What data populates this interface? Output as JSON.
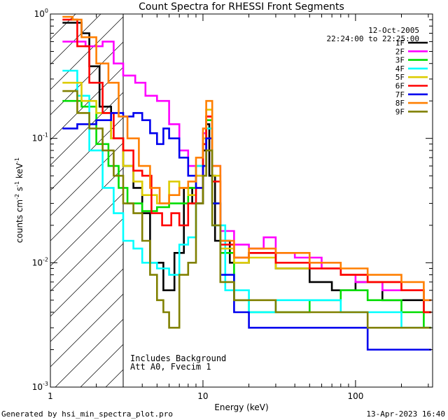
{
  "chart_data": {
    "type": "line",
    "title": "Count Spectra for RHESSI Front Segments",
    "xlabel": "Energy (keV)",
    "ylabel_parts": [
      "counts cm",
      "-2",
      " s",
      "-1",
      " keV",
      "-1"
    ],
    "x_scale": "log",
    "y_scale": "log",
    "xlim": [
      1.0,
      320
    ],
    "ylim": [
      0.001,
      1.0
    ],
    "x_ticks": [
      {
        "value": 1,
        "label": "1"
      },
      {
        "value": 10,
        "label": "10"
      },
      {
        "value": 100,
        "label": "100"
      }
    ],
    "y_ticks": [
      {
        "value": 1,
        "base": "10",
        "exp": "0"
      },
      {
        "value": 0.1,
        "base": "10",
        "exp": "-1"
      },
      {
        "value": 0.01,
        "base": "10",
        "exp": "-2"
      },
      {
        "value": 0.001,
        "base": "10",
        "exp": "-3"
      }
    ],
    "date": "12-Oct-2005",
    "time_range": "22:24:00 to 22:25:00",
    "shaded_region_max_keV": 3.0,
    "annotation_lines": [
      "Includes Background",
      "Att A0, Fvecim 1"
    ],
    "legend_position": "top-right",
    "series": [
      {
        "name": "1F",
        "color": "#000000",
        "points": [
          [
            1.2,
            0.85
          ],
          [
            1.6,
            0.7
          ],
          [
            1.8,
            0.38
          ],
          [
            2.1,
            0.18
          ],
          [
            2.5,
            0.1
          ],
          [
            3.0,
            0.06
          ],
          [
            3.5,
            0.04
          ],
          [
            4.0,
            0.025
          ],
          [
            4.5,
            0.01
          ],
          [
            5.5,
            0.006
          ],
          [
            6.5,
            0.012
          ],
          [
            7.5,
            0.04
          ],
          [
            8.5,
            0.03
          ],
          [
            10.0,
            0.08
          ],
          [
            10.5,
            0.13
          ],
          [
            11.0,
            0.05
          ],
          [
            12.0,
            0.015
          ],
          [
            15,
            0.01
          ],
          [
            20,
            0.012
          ],
          [
            30,
            0.009
          ],
          [
            50,
            0.007
          ],
          [
            70,
            0.006
          ],
          [
            100,
            0.007
          ],
          [
            150,
            0.005
          ],
          [
            200,
            0.005
          ],
          [
            280,
            0.004
          ]
        ]
      },
      {
        "name": "2F",
        "color": "#ff00ff",
        "points": [
          [
            1.2,
            0.6
          ],
          [
            1.7,
            0.55
          ],
          [
            2.2,
            0.6
          ],
          [
            2.6,
            0.4
          ],
          [
            3.0,
            0.32
          ],
          [
            3.6,
            0.28
          ],
          [
            4.2,
            0.22
          ],
          [
            5.0,
            0.2
          ],
          [
            6.0,
            0.13
          ],
          [
            7.0,
            0.08
          ],
          [
            8.0,
            0.06
          ],
          [
            9.0,
            0.05
          ],
          [
            10.0,
            0.11
          ],
          [
            10.5,
            0.15
          ],
          [
            11.5,
            0.06
          ],
          [
            13,
            0.018
          ],
          [
            16,
            0.014
          ],
          [
            20,
            0.013
          ],
          [
            25,
            0.016
          ],
          [
            30,
            0.012
          ],
          [
            40,
            0.011
          ],
          [
            60,
            0.009
          ],
          [
            80,
            0.008
          ],
          [
            100,
            0.007
          ],
          [
            150,
            0.006
          ],
          [
            200,
            0.006
          ],
          [
            280,
            0.005
          ]
        ]
      },
      {
        "name": "3F",
        "color": "#00dd00",
        "points": [
          [
            1.2,
            0.2
          ],
          [
            1.6,
            0.18
          ],
          [
            2.0,
            0.09
          ],
          [
            2.4,
            0.06
          ],
          [
            2.8,
            0.04
          ],
          [
            3.2,
            0.03
          ],
          [
            4.0,
            0.026
          ],
          [
            5.0,
            0.028
          ],
          [
            6.0,
            0.03
          ],
          [
            7.0,
            0.03
          ],
          [
            8.0,
            0.04
          ],
          [
            9.0,
            0.06
          ],
          [
            10.0,
            0.09
          ],
          [
            10.5,
            0.14
          ],
          [
            11.5,
            0.03
          ],
          [
            13,
            0.012
          ],
          [
            16,
            0.005
          ],
          [
            20,
            0.004
          ],
          [
            30,
            0.004
          ],
          [
            50,
            0.005
          ],
          [
            80,
            0.006
          ],
          [
            120,
            0.005
          ],
          [
            200,
            0.004
          ],
          [
            280,
            0.003
          ]
        ]
      },
      {
        "name": "4F",
        "color": "#00ffff",
        "points": [
          [
            1.2,
            0.35
          ],
          [
            1.5,
            0.22
          ],
          [
            1.8,
            0.08
          ],
          [
            2.2,
            0.04
          ],
          [
            2.6,
            0.025
          ],
          [
            3.0,
            0.015
          ],
          [
            3.5,
            0.013
          ],
          [
            4.0,
            0.01
          ],
          [
            5.0,
            0.009
          ],
          [
            6.0,
            0.008
          ],
          [
            7.0,
            0.014
          ],
          [
            8.0,
            0.016
          ],
          [
            9.0,
            0.06
          ],
          [
            10.0,
            0.09
          ],
          [
            10.5,
            0.12
          ],
          [
            11.5,
            0.02
          ],
          [
            14,
            0.006
          ],
          [
            20,
            0.004
          ],
          [
            30,
            0.005
          ],
          [
            50,
            0.005
          ],
          [
            80,
            0.004
          ],
          [
            120,
            0.004
          ],
          [
            200,
            0.003
          ],
          [
            280,
            0.003
          ]
        ]
      },
      {
        "name": "5F",
        "color": "#ddcc00",
        "points": [
          [
            1.2,
            0.28
          ],
          [
            1.6,
            0.2
          ],
          [
            2.0,
            0.16
          ],
          [
            2.5,
            0.1
          ],
          [
            3.0,
            0.06
          ],
          [
            3.5,
            0.045
          ],
          [
            4.0,
            0.035
          ],
          [
            5.0,
            0.03
          ],
          [
            6.0,
            0.045
          ],
          [
            7.0,
            0.04
          ],
          [
            8.0,
            0.035
          ],
          [
            9.0,
            0.05
          ],
          [
            10.0,
            0.1
          ],
          [
            10.5,
            0.17
          ],
          [
            11.5,
            0.05
          ],
          [
            13,
            0.013
          ],
          [
            16,
            0.01
          ],
          [
            20,
            0.011
          ],
          [
            30,
            0.009
          ],
          [
            50,
            0.009
          ],
          [
            80,
            0.008
          ],
          [
            120,
            0.007
          ],
          [
            200,
            0.006
          ],
          [
            280,
            0.004
          ]
        ]
      },
      {
        "name": "6F",
        "color": "#ff0000",
        "points": [
          [
            1.2,
            0.9
          ],
          [
            1.5,
            0.55
          ],
          [
            1.8,
            0.28
          ],
          [
            2.2,
            0.16
          ],
          [
            2.6,
            0.1
          ],
          [
            3.0,
            0.08
          ],
          [
            3.5,
            0.055
          ],
          [
            4.0,
            0.05
          ],
          [
            4.6,
            0.025
          ],
          [
            5.4,
            0.02
          ],
          [
            6.2,
            0.025
          ],
          [
            7.0,
            0.02
          ],
          [
            8.0,
            0.03
          ],
          [
            9.0,
            0.04
          ],
          [
            10.0,
            0.09
          ],
          [
            10.5,
            0.15
          ],
          [
            11.5,
            0.045
          ],
          [
            13,
            0.014
          ],
          [
            16,
            0.011
          ],
          [
            20,
            0.012
          ],
          [
            30,
            0.01
          ],
          [
            50,
            0.009
          ],
          [
            80,
            0.008
          ],
          [
            120,
            0.007
          ],
          [
            200,
            0.006
          ],
          [
            280,
            0.004
          ]
        ]
      },
      {
        "name": "7F",
        "color": "#0000ee",
        "points": [
          [
            1.2,
            0.12
          ],
          [
            1.5,
            0.13
          ],
          [
            2.0,
            0.14
          ],
          [
            2.5,
            0.16
          ],
          [
            3.0,
            0.15
          ],
          [
            3.5,
            0.16
          ],
          [
            4.0,
            0.14
          ],
          [
            4.5,
            0.11
          ],
          [
            5.0,
            0.09
          ],
          [
            5.5,
            0.12
          ],
          [
            6.0,
            0.1
          ],
          [
            7.0,
            0.07
          ],
          [
            8.0,
            0.05
          ],
          [
            9.0,
            0.04
          ],
          [
            10.0,
            0.06
          ],
          [
            10.5,
            0.1
          ],
          [
            11.5,
            0.03
          ],
          [
            13,
            0.008
          ],
          [
            16,
            0.004
          ],
          [
            20,
            0.003
          ],
          [
            30,
            0.003
          ],
          [
            50,
            0.003
          ],
          [
            80,
            0.003
          ],
          [
            120,
            0.002
          ],
          [
            200,
            0.002
          ],
          [
            280,
            0.002
          ]
        ]
      },
      {
        "name": "8F",
        "color": "#ff7f00",
        "points": [
          [
            1.2,
            0.95
          ],
          [
            1.4,
            0.9
          ],
          [
            1.6,
            0.65
          ],
          [
            2.0,
            0.4
          ],
          [
            2.4,
            0.28
          ],
          [
            2.8,
            0.15
          ],
          [
            3.2,
            0.1
          ],
          [
            3.8,
            0.06
          ],
          [
            4.5,
            0.04
          ],
          [
            5.2,
            0.03
          ],
          [
            6.0,
            0.035
          ],
          [
            7.0,
            0.04
          ],
          [
            8.0,
            0.045
          ],
          [
            9.0,
            0.07
          ],
          [
            10.0,
            0.12
          ],
          [
            10.5,
            0.2
          ],
          [
            11.5,
            0.06
          ],
          [
            13,
            0.015
          ],
          [
            16,
            0.011
          ],
          [
            20,
            0.013
          ],
          [
            30,
            0.012
          ],
          [
            50,
            0.01
          ],
          [
            80,
            0.009
          ],
          [
            120,
            0.008
          ],
          [
            200,
            0.007
          ],
          [
            280,
            0.005
          ]
        ]
      },
      {
        "name": "9F",
        "color": "#808000",
        "points": [
          [
            1.2,
            0.24
          ],
          [
            1.5,
            0.16
          ],
          [
            1.8,
            0.12
          ],
          [
            2.2,
            0.08
          ],
          [
            2.6,
            0.05
          ],
          [
            3.0,
            0.03
          ],
          [
            3.5,
            0.025
          ],
          [
            4.0,
            0.015
          ],
          [
            4.5,
            0.008
          ],
          [
            5.0,
            0.005
          ],
          [
            5.5,
            0.004
          ],
          [
            6.0,
            0.003
          ],
          [
            7.0,
            0.008
          ],
          [
            8.0,
            0.01
          ],
          [
            9.0,
            0.03
          ],
          [
            10.0,
            0.05
          ],
          [
            10.5,
            0.08
          ],
          [
            11.5,
            0.02
          ],
          [
            13,
            0.007
          ],
          [
            16,
            0.005
          ],
          [
            20,
            0.005
          ],
          [
            30,
            0.004
          ],
          [
            50,
            0.004
          ],
          [
            80,
            0.004
          ],
          [
            120,
            0.003
          ],
          [
            200,
            0.003
          ],
          [
            280,
            0.003
          ]
        ]
      }
    ]
  },
  "footer": {
    "generated_by": "Generated by hsi_min_spectra_plot.pro",
    "timestamp": "13-Apr-2023 16:40"
  }
}
